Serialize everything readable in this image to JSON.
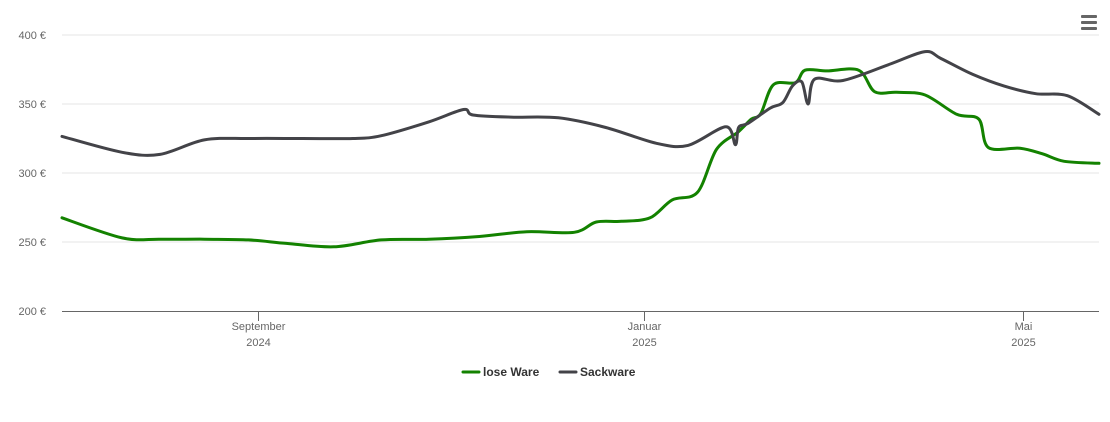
{
  "chart_data": {
    "type": "line",
    "y_axis": {
      "min": 200,
      "max": 400,
      "ticks": [
        200,
        250,
        300,
        350,
        400
      ],
      "tick_labels": [
        "200 €",
        "250 €",
        "300 €",
        "350 €",
        "400 €"
      ]
    },
    "x_axis": {
      "min": "2024-07-01",
      "max": "2025-05-25",
      "ticks": [
        {
          "date": "2024-09-01",
          "label_top": "September",
          "label_bottom": "2024"
        },
        {
          "date": "2025-01-01",
          "label_top": "Januar",
          "label_bottom": "2025"
        },
        {
          "date": "2025-05-01",
          "label_top": "Mai",
          "label_bottom": "2025"
        }
      ]
    },
    "grid": "horizontal",
    "legend": "bottom-center",
    "series": [
      {
        "name": "lose Ware",
        "color": "#138200",
        "points": [
          [
            "2024-07-01",
            267.5
          ],
          [
            "2024-07-20",
            253
          ],
          [
            "2024-08-01",
            252
          ],
          [
            "2024-08-15",
            252
          ],
          [
            "2024-08-29",
            251.5
          ],
          [
            "2024-09-10",
            249
          ],
          [
            "2024-09-25",
            246.5
          ],
          [
            "2024-10-10",
            251.5
          ],
          [
            "2024-10-25",
            252
          ],
          [
            "2024-11-10",
            254
          ],
          [
            "2024-11-25",
            257.5
          ],
          [
            "2024-12-10",
            257
          ],
          [
            "2024-12-17",
            264.5
          ],
          [
            "2024-12-25",
            265
          ],
          [
            "2025-01-03",
            267.5
          ],
          [
            "2025-01-10",
            280.5
          ],
          [
            "2025-01-18",
            286
          ],
          [
            "2025-01-24",
            317
          ],
          [
            "2025-01-31",
            330
          ],
          [
            "2025-02-04",
            339
          ],
          [
            "2025-02-07",
            343
          ],
          [
            "2025-02-11",
            364
          ],
          [
            "2025-02-18",
            365.5
          ],
          [
            "2025-02-21",
            374.5
          ],
          [
            "2025-02-28",
            374
          ],
          [
            "2025-03-10",
            374.5
          ],
          [
            "2025-03-15",
            359
          ],
          [
            "2025-03-22",
            358.5
          ],
          [
            "2025-03-31",
            356.5
          ],
          [
            "2025-04-10",
            342.5
          ],
          [
            "2025-04-17",
            339
          ],
          [
            "2025-04-20",
            318.5
          ],
          [
            "2025-04-30",
            318
          ],
          [
            "2025-05-07",
            314
          ],
          [
            "2025-05-14",
            308.5
          ],
          [
            "2025-05-25",
            307
          ]
        ]
      },
      {
        "name": "Sackware",
        "color": "#434348",
        "points": [
          [
            "2024-07-01",
            326.5
          ],
          [
            "2024-07-20",
            315
          ],
          [
            "2024-08-01",
            313.5
          ],
          [
            "2024-08-15",
            324
          ],
          [
            "2024-08-29",
            325
          ],
          [
            "2024-09-15",
            325
          ],
          [
            "2024-10-01",
            325
          ],
          [
            "2024-10-10",
            327
          ],
          [
            "2024-10-25",
            337
          ],
          [
            "2024-11-05",
            346
          ],
          [
            "2024-11-08",
            342
          ],
          [
            "2024-11-20",
            340.5
          ],
          [
            "2024-12-05",
            340
          ],
          [
            "2024-12-20",
            333
          ],
          [
            "2025-01-05",
            321.5
          ],
          [
            "2025-01-15",
            320
          ],
          [
            "2025-01-27",
            333.5
          ],
          [
            "2025-01-30",
            320.5
          ],
          [
            "2025-01-31",
            333
          ],
          [
            "2025-02-03",
            336
          ],
          [
            "2025-02-10",
            347
          ],
          [
            "2025-02-14",
            351
          ],
          [
            "2025-02-17",
            363
          ],
          [
            "2025-02-20",
            366
          ],
          [
            "2025-02-22",
            350
          ],
          [
            "2025-02-24",
            368
          ],
          [
            "2025-03-05",
            367
          ],
          [
            "2025-03-20",
            379
          ],
          [
            "2025-03-31",
            388
          ],
          [
            "2025-04-05",
            383
          ],
          [
            "2025-04-15",
            371.5
          ],
          [
            "2025-04-25",
            363
          ],
          [
            "2025-05-05",
            357.5
          ],
          [
            "2025-05-15",
            356
          ],
          [
            "2025-05-25",
            342.5
          ]
        ]
      }
    ]
  },
  "toolbar": {
    "menu_icon": "hamburger-menu-icon"
  }
}
